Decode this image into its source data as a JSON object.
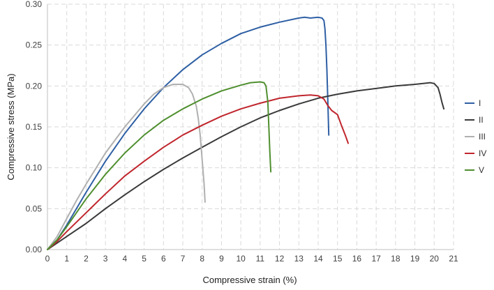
{
  "chart_data": {
    "type": "line",
    "xlabel": "Compressive strain (%)",
    "ylabel": "Compressive stress (MPa)",
    "xlim": [
      0,
      21
    ],
    "ylim": [
      0,
      0.3
    ],
    "xticks": [
      0,
      1,
      2,
      3,
      4,
      5,
      6,
      7,
      8,
      9,
      10,
      11,
      12,
      13,
      14,
      15,
      16,
      17,
      18,
      19,
      20,
      21
    ],
    "yticks": [
      "0.00",
      "0.05",
      "0.10",
      "0.15",
      "0.20",
      "0.25",
      "0.30"
    ],
    "grid": true,
    "legend_position": "right",
    "series": [
      {
        "name": "I",
        "color": "#2e5fa4",
        "x": [
          0,
          0.5,
          1,
          1.5,
          2,
          3,
          4,
          5,
          6,
          7,
          8,
          9,
          10,
          11,
          12,
          13,
          13.3,
          13.6,
          14.0,
          14.2,
          14.3,
          14.35,
          14.4,
          14.45,
          14.5,
          14.55
        ],
        "y": [
          0,
          0.012,
          0.03,
          0.05,
          0.07,
          0.108,
          0.142,
          0.172,
          0.198,
          0.22,
          0.238,
          0.252,
          0.264,
          0.272,
          0.278,
          0.283,
          0.284,
          0.283,
          0.284,
          0.283,
          0.28,
          0.27,
          0.25,
          0.22,
          0.18,
          0.14
        ]
      },
      {
        "name": "II",
        "color": "#3a3a3a",
        "x": [
          0,
          0.5,
          1,
          2,
          3,
          4,
          5,
          6,
          7,
          8,
          9,
          10,
          11,
          12,
          13,
          14,
          15,
          16,
          17,
          18,
          19,
          19.8,
          20.0,
          20.2,
          20.3,
          20.4,
          20.5
        ],
        "y": [
          0,
          0.008,
          0.016,
          0.032,
          0.05,
          0.067,
          0.083,
          0.098,
          0.112,
          0.125,
          0.138,
          0.15,
          0.161,
          0.17,
          0.178,
          0.185,
          0.19,
          0.194,
          0.197,
          0.2,
          0.202,
          0.204,
          0.203,
          0.198,
          0.19,
          0.18,
          0.172
        ]
      },
      {
        "name": "III",
        "color": "#b0b0b0",
        "x": [
          0,
          0.5,
          1,
          1.5,
          2,
          3,
          4,
          5,
          5.5,
          6,
          6.5,
          7,
          7.3,
          7.5,
          7.7,
          7.8,
          7.9,
          8.0,
          8.1,
          8.15
        ],
        "y": [
          0,
          0.016,
          0.038,
          0.06,
          0.08,
          0.118,
          0.15,
          0.178,
          0.19,
          0.198,
          0.202,
          0.202,
          0.198,
          0.19,
          0.175,
          0.16,
          0.14,
          0.11,
          0.08,
          0.058
        ]
      },
      {
        "name": "IV",
        "color": "#c0262d",
        "x": [
          0,
          0.5,
          1,
          2,
          3,
          4,
          5,
          6,
          7,
          8,
          9,
          10,
          11,
          12,
          13,
          13.6,
          14.0,
          14.3,
          14.5,
          14.7,
          15.0,
          15.2,
          15.4,
          15.55
        ],
        "y": [
          0,
          0.01,
          0.022,
          0.045,
          0.068,
          0.09,
          0.108,
          0.125,
          0.14,
          0.152,
          0.163,
          0.172,
          0.179,
          0.185,
          0.188,
          0.189,
          0.188,
          0.184,
          0.176,
          0.17,
          0.165,
          0.152,
          0.14,
          0.13
        ]
      },
      {
        "name": "V",
        "color": "#4f8f2f",
        "x": [
          0,
          0.5,
          1,
          2,
          3,
          4,
          5,
          6,
          7,
          8,
          9,
          10,
          10.5,
          11.0,
          11.2,
          11.3,
          11.4,
          11.45,
          11.5,
          11.55
        ],
        "y": [
          0,
          0.012,
          0.028,
          0.062,
          0.092,
          0.118,
          0.14,
          0.158,
          0.172,
          0.184,
          0.194,
          0.201,
          0.204,
          0.205,
          0.204,
          0.2,
          0.18,
          0.15,
          0.12,
          0.095
        ]
      }
    ]
  }
}
